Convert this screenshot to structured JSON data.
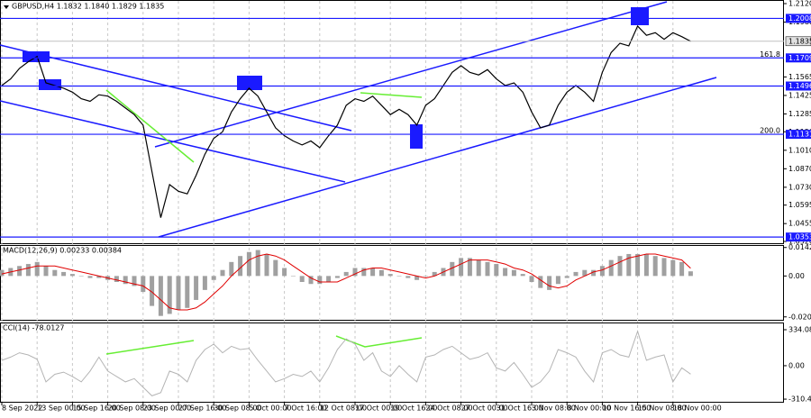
{
  "chart_data": [
    {
      "type": "line",
      "title": "GBPUSD,H4 1.1832 1.1840 1.1829 1.1835",
      "color": "#000000",
      "categories": [
        "8 Sep 2022",
        null,
        null,
        null,
        "13 Sep 00:00",
        null,
        null,
        null,
        "15 Sep 16:00",
        null,
        null,
        null,
        "20 Sep 08:00",
        null,
        null,
        null,
        "23 Sep 00:00",
        null,
        null,
        null,
        "27 Sep 16:00",
        null,
        null,
        null,
        "30 Sep 08:00",
        null,
        null,
        null,
        "5 Oct 00:00",
        null,
        null,
        null,
        "7 Oct 16:00",
        null,
        null,
        null,
        "12 Oct 08:00",
        null,
        null,
        null,
        "17 Oct 00:00",
        null,
        null,
        null,
        "19 Oct 16:00",
        null,
        null,
        null,
        "24 Oct 08:00",
        null,
        null,
        null,
        "27 Oct 00:00",
        null,
        null,
        null,
        "31 Oct 16:00",
        null,
        null,
        null,
        "3 Nov 08:00",
        null,
        null,
        null,
        "8 Nov 00:00",
        null,
        null,
        null,
        "10 Nov 16:00",
        null,
        null,
        null,
        "15 Nov 08:00",
        null,
        null,
        null,
        "18 Nov 00:00",
        null,
        null
      ],
      "values": [
        1.15,
        1.155,
        1.163,
        1.168,
        1.172,
        1.152,
        1.15,
        1.148,
        1.145,
        1.14,
        1.138,
        1.143,
        1.142,
        1.138,
        1.133,
        1.128,
        1.12,
        1.085,
        1.05,
        1.075,
        1.07,
        1.068,
        1.082,
        1.098,
        1.11,
        1.115,
        1.13,
        1.14,
        1.148,
        1.142,
        1.13,
        1.118,
        1.112,
        1.108,
        1.105,
        1.108,
        1.103,
        1.112,
        1.12,
        1.135,
        1.14,
        1.138,
        1.142,
        1.135,
        1.128,
        1.132,
        1.128,
        1.12,
        1.135,
        1.14,
        1.15,
        1.16,
        1.165,
        1.16,
        1.158,
        1.162,
        1.155,
        1.15,
        1.152,
        1.145,
        1.13,
        1.118,
        1.12,
        1.135,
        1.145,
        1.15,
        1.145,
        1.138,
        1.16,
        1.175,
        1.182,
        1.18,
        1.195,
        1.188,
        1.19,
        1.185,
        1.19,
        1.187,
        1.1835
      ],
      "ylim": [
        1.032,
        1.212
      ],
      "yticks": [
        {
          "value": 1.212,
          "label": "1.2120"
        },
        {
          "value": 1.198,
          "label": "1.1980"
        },
        1.1565,
        1.1425,
        1.1285,
        {
          "value": 1.115,
          "label": "1.1150"
        },
        {
          "value": 1.101,
          "label": "1.1010"
        },
        {
          "value": 1.087,
          "label": "1.0870"
        },
        {
          "value": 1.073,
          "label": "1.0730"
        },
        1.0595,
        1.0455,
        {
          "value": 1.032,
          "label": "1.0320"
        }
      ],
      "levels": [
        1.2008,
        1.1709,
        1.1496,
        1.1131,
        1.0353
      ],
      "level_color": "#1a1aff",
      "current_price": 1.1835,
      "annotations": [
        "161.8",
        "200.0"
      ],
      "grid": true
    },
    {
      "type": "macd",
      "title": "MACD(12,26,9) 0.00233 0.00384",
      "color": "#a0a0a0",
      "signal_color": "#e00000",
      "values": [
        0.003,
        0.004,
        0.005,
        0.006,
        0.007,
        0.005,
        0.003,
        0.002,
        0.001,
        0.0,
        -0.001,
        -0.001,
        -0.002,
        -0.003,
        -0.004,
        -0.005,
        -0.008,
        -0.015,
        -0.02,
        -0.019,
        -0.017,
        -0.016,
        -0.012,
        -0.007,
        -0.002,
        0.003,
        0.007,
        0.01,
        0.012,
        0.013,
        0.011,
        0.008,
        0.004,
        0.0,
        -0.003,
        -0.004,
        -0.004,
        -0.003,
        -0.001,
        0.002,
        0.004,
        0.004,
        0.004,
        0.003,
        0.001,
        0.0,
        -0.001,
        -0.002,
        0.0,
        0.002,
        0.004,
        0.007,
        0.009,
        0.009,
        0.008,
        0.007,
        0.006,
        0.004,
        0.003,
        0.001,
        -0.003,
        -0.006,
        -0.007,
        -0.004,
        -0.001,
        0.002,
        0.003,
        0.003,
        0.005,
        0.008,
        0.01,
        0.011,
        0.011,
        0.011,
        0.01,
        0.009,
        0.008,
        0.007,
        0.00233
      ],
      "signal_values": [
        0.001,
        0.002,
        0.003,
        0.004,
        0.005,
        0.005,
        0.005,
        0.004,
        0.003,
        0.002,
        0.001,
        0.0,
        -0.001,
        -0.002,
        -0.003,
        -0.004,
        -0.005,
        -0.008,
        -0.012,
        -0.016,
        -0.017,
        -0.017,
        -0.016,
        -0.013,
        -0.009,
        -0.005,
        0.0,
        0.004,
        0.008,
        0.01,
        0.011,
        0.01,
        0.008,
        0.005,
        0.002,
        -0.001,
        -0.003,
        -0.003,
        -0.003,
        -0.001,
        0.001,
        0.003,
        0.004,
        0.004,
        0.003,
        0.002,
        0.001,
        0.0,
        -0.001,
        0.0,
        0.002,
        0.004,
        0.006,
        0.008,
        0.008,
        0.008,
        0.007,
        0.006,
        0.004,
        0.003,
        0.001,
        -0.002,
        -0.005,
        -0.006,
        -0.005,
        -0.002,
        0.0,
        0.002,
        0.003,
        0.005,
        0.007,
        0.009,
        0.01,
        0.011,
        0.011,
        0.01,
        0.009,
        0.008,
        0.00384
      ],
      "ylim": [
        -0.0215,
        0.0155
      ],
      "yticks": [
        0.01427,
        {
          "value": 0,
          "label": "0.00"
        },
        -0.02049
      ]
    },
    {
      "type": "line",
      "title": "CCI(14) -78.0127",
      "color": "#b4b4b4",
      "values": [
        50,
        80,
        120,
        100,
        60,
        -150,
        -80,
        -60,
        -100,
        -150,
        -50,
        80,
        -50,
        -100,
        -150,
        -120,
        -200,
        -280,
        -250,
        -50,
        -80,
        -150,
        50,
        150,
        200,
        120,
        180,
        150,
        160,
        50,
        -50,
        -150,
        -120,
        -80,
        -100,
        -50,
        -150,
        -20,
        150,
        250,
        200,
        50,
        120,
        -50,
        -100,
        0,
        -80,
        -150,
        80,
        100,
        150,
        180,
        120,
        60,
        80,
        120,
        -20,
        -50,
        30,
        -80,
        -200,
        -150,
        -50,
        150,
        120,
        80,
        -50,
        -150,
        120,
        150,
        100,
        80,
        320,
        50,
        80,
        100,
        -150,
        -20,
        -78.0127
      ],
      "ylim": [
        -335,
        401
      ],
      "yticks": [
        334.0824,
        {
          "value": 0,
          "label": "0.00"
        },
        -310.4354
      ]
    }
  ]
}
